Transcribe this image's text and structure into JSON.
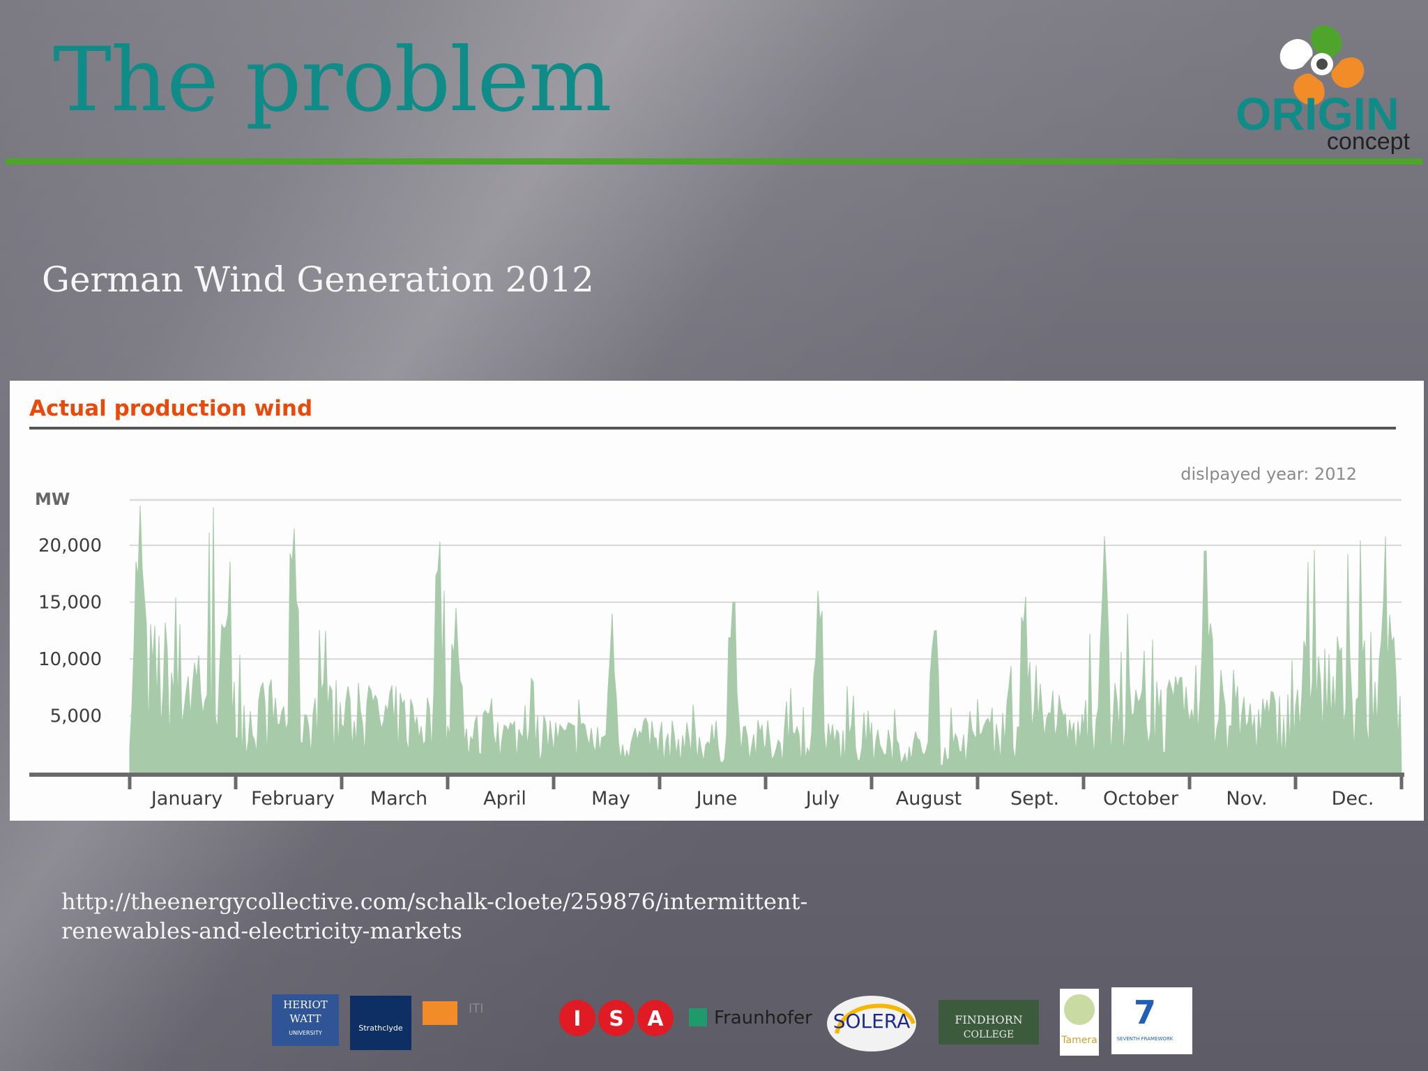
{
  "slide": {
    "title": "The problem",
    "subtitle": "German Wind Generation 2012",
    "source_url": "http://theenergycollective.com/schalk-cloete/259876/intermittent-renewables-and-electricity-markets",
    "title_color": "#0f8c87",
    "rule_color": "#4fa52c"
  },
  "logo": {
    "word": "ORIGIN",
    "sub": "concept"
  },
  "chart_data": {
    "type": "area",
    "title": "Actual production wind",
    "note": "dislpayed year: 2012",
    "ylabel": "MW",
    "ylim": [
      0,
      24000
    ],
    "yticks": [
      5000,
      10000,
      15000,
      20000
    ],
    "ytick_labels": [
      "5,000",
      "10,000",
      "15,000",
      "20,000"
    ],
    "categories": [
      "January",
      "February",
      "March",
      "April",
      "May",
      "June",
      "July",
      "August",
      "Sept.",
      "October",
      "Nov.",
      "Dec."
    ],
    "series": [
      {
        "color": "#a7cba9",
        "monthly_peaks": [
          23500,
          21500,
          20300,
          14500,
          14000,
          15000,
          16000,
          12500,
          15500,
          20800,
          19500,
          20800
        ],
        "monthly_typical": [
          9000,
          5500,
          5000,
          3500,
          3200,
          3000,
          3000,
          2500,
          3800,
          5500,
          5000,
          8000
        ]
      }
    ],
    "grid": true,
    "title_color": "#e84a0c"
  },
  "sponsors": [
    "HERIOT WATT UNIVERSITY",
    "University of Strathclyde Glasgow",
    "ITI",
    "I",
    "S",
    "A",
    "Fraunhofer",
    "SOLERA",
    "FINDHORN COLLEGE",
    "Tamera",
    "SEVENTH FRAMEWORK PROGRAMME"
  ]
}
